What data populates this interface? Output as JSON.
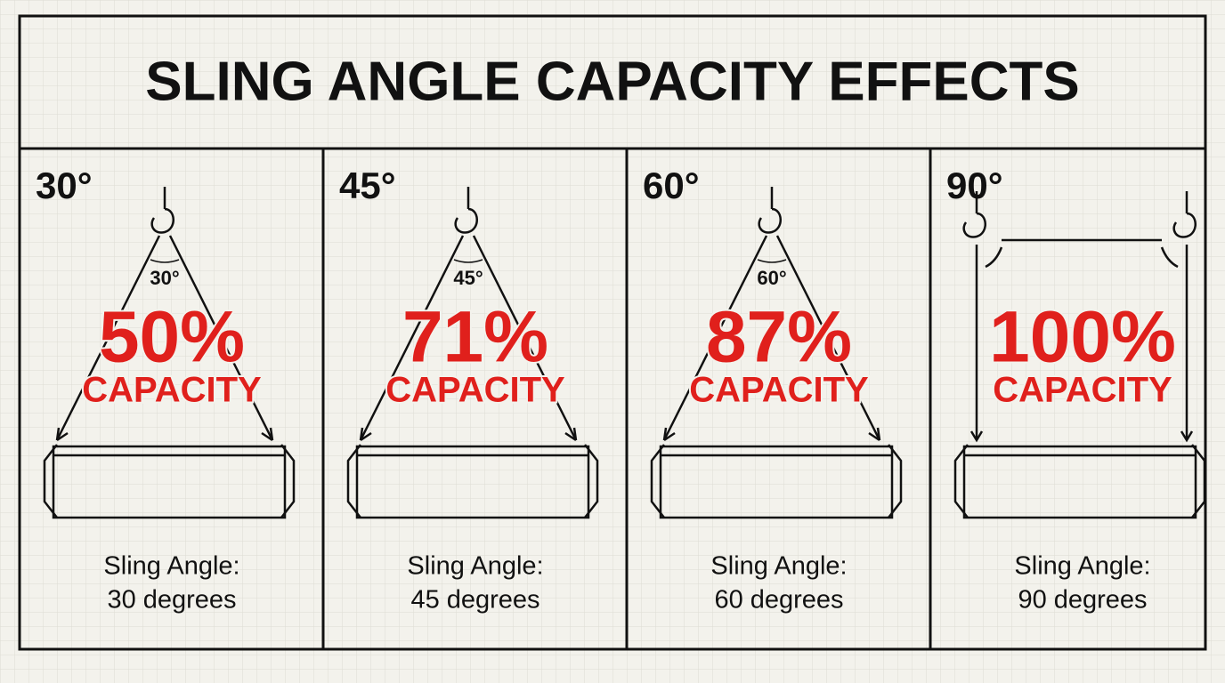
{
  "header": {
    "title": "SLING ANGLE CAPACITY EFFECTS"
  },
  "panels": [
    {
      "angle": "30°",
      "angle_mark": "30°",
      "percent": "50%",
      "capacity": "CAPACITY",
      "caption": [
        "Sling Angle:",
        "30 degrees"
      ]
    },
    {
      "angle": "45°",
      "angle_mark": "45°",
      "percent": "71%",
      "capacity": "CAPACITY",
      "caption": [
        "Sling Angle:",
        "45 degrees"
      ]
    },
    {
      "angle": "60°",
      "angle_mark": "60°",
      "percent": "87%",
      "capacity": "CAPACITY",
      "caption": [
        "Sling Angle:",
        "60 degrees"
      ]
    },
    {
      "angle": "90°",
      "percent": "100%",
      "capacity": "CAPACITY",
      "caption": [
        "Sling Angle:",
        "90 degrees"
      ]
    }
  ]
}
